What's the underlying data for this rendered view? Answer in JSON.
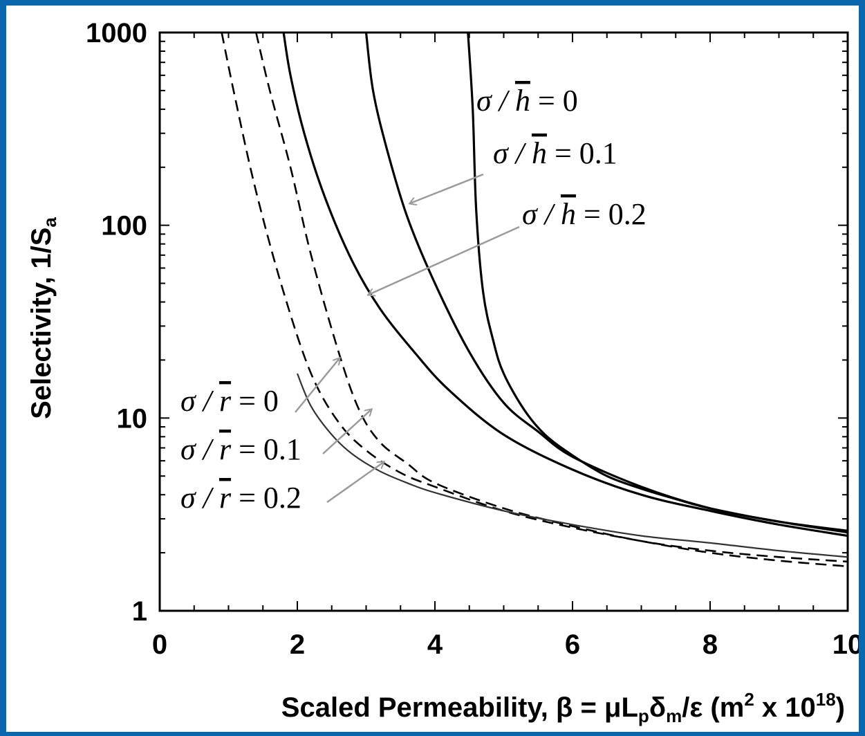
{
  "chart_data": {
    "type": "line",
    "xlabel": "Scaled Permeability, β = μL",
    "xlabel_parts": {
      "lead": "Scaled Permeability, β = μL",
      "sub_p": "p",
      "delta": "δ",
      "sub_m": "m",
      "tail": "/ε (m",
      "sup_2": "2",
      "times": " x 10",
      "sup_18": "18",
      "close": ")"
    },
    "ylabel": "Selectivity, 1/S",
    "ylabel_sub": "a",
    "xlim": [
      0,
      10
    ],
    "ylim": [
      1,
      1000
    ],
    "yscale": "log",
    "x_ticks": [
      "0",
      "2",
      "4",
      "6",
      "8",
      "10"
    ],
    "y_ticks": [
      "1",
      "10",
      "100",
      "1000"
    ],
    "grid": false,
    "series": [
      {
        "style": "solid",
        "color": "#000000",
        "x": [
          4.48,
          4.55,
          4.6,
          4.7,
          4.85,
          5.0,
          5.3,
          5.6,
          6.0,
          6.5,
          7.0,
          7.5,
          8.0,
          9.0,
          10.0
        ],
        "y": [
          1000,
          400,
          120,
          45,
          25,
          17,
          11,
          8.2,
          6.4,
          5.0,
          4.3,
          3.8,
          3.4,
          2.9,
          2.6
        ]
      },
      {
        "style": "solid",
        "color": "#000000",
        "x": [
          3.0,
          3.1,
          3.3,
          3.6,
          4.0,
          4.5,
          5.0,
          5.5,
          6.0,
          7.0,
          8.0,
          9.0,
          10.0
        ],
        "y": [
          1000,
          500,
          250,
          110,
          50,
          22,
          12,
          8.5,
          6.3,
          4.4,
          3.4,
          2.9,
          2.55
        ]
      },
      {
        "style": "solid",
        "color": "#000000",
        "x": [
          1.8,
          1.9,
          2.1,
          2.4,
          2.8,
          3.2,
          3.7,
          4.2,
          5.0,
          6.0,
          7.0,
          8.0,
          9.0,
          10.0
        ],
        "y": [
          1000,
          600,
          300,
          140,
          65,
          37,
          22,
          14,
          8.2,
          5.4,
          4.0,
          3.3,
          2.8,
          2.45
        ]
      },
      {
        "style": "dashed",
        "color": "#000000",
        "x": [
          1.4,
          1.6,
          1.9,
          2.2,
          2.6,
          2.9,
          3.2,
          3.6,
          4.0,
          5.0,
          6.0,
          7.0,
          8.0,
          9.0,
          10.0
        ],
        "y": [
          1000,
          500,
          200,
          70,
          22,
          11,
          7.5,
          5.8,
          4.6,
          3.4,
          2.75,
          2.3,
          2.05,
          1.9,
          1.8
        ]
      },
      {
        "style": "dashed",
        "color": "#000000",
        "x": [
          0.9,
          1.1,
          1.4,
          1.8,
          2.2,
          2.6,
          3.0,
          3.5,
          4.0,
          5.0,
          6.0,
          7.0,
          8.0,
          9.0,
          10.0
        ],
        "y": [
          1000,
          450,
          150,
          45,
          17,
          9.5,
          6.8,
          5.2,
          4.4,
          3.3,
          2.7,
          2.3,
          2.0,
          1.82,
          1.7
        ]
      },
      {
        "style": "solid-thin",
        "color": "#333333",
        "x": [
          2.0,
          2.2,
          2.5,
          2.8,
          3.2,
          3.6,
          4.0,
          5.0,
          6.0,
          7.0,
          8.0,
          9.0,
          10.0
        ],
        "y": [
          17,
          11.5,
          8.2,
          6.5,
          5.3,
          4.6,
          4.1,
          3.3,
          2.8,
          2.45,
          2.25,
          2.05,
          1.9
        ]
      }
    ],
    "annotations": [
      {
        "label_lead": "σ / ",
        "label_var": "h",
        "label_tail": " = 0"
      },
      {
        "label_lead": "σ / ",
        "label_var": "h",
        "label_tail": " = 0.1"
      },
      {
        "label_lead": "σ / ",
        "label_var": "h",
        "label_tail": " = 0.2"
      },
      {
        "label_lead": "σ / ",
        "label_var": "r",
        "label_tail": " = 0"
      },
      {
        "label_lead": "σ / ",
        "label_var": "r",
        "label_tail": " = 0.1"
      },
      {
        "label_lead": "σ / ",
        "label_var": "r",
        "label_tail": " = 0.2"
      }
    ]
  }
}
